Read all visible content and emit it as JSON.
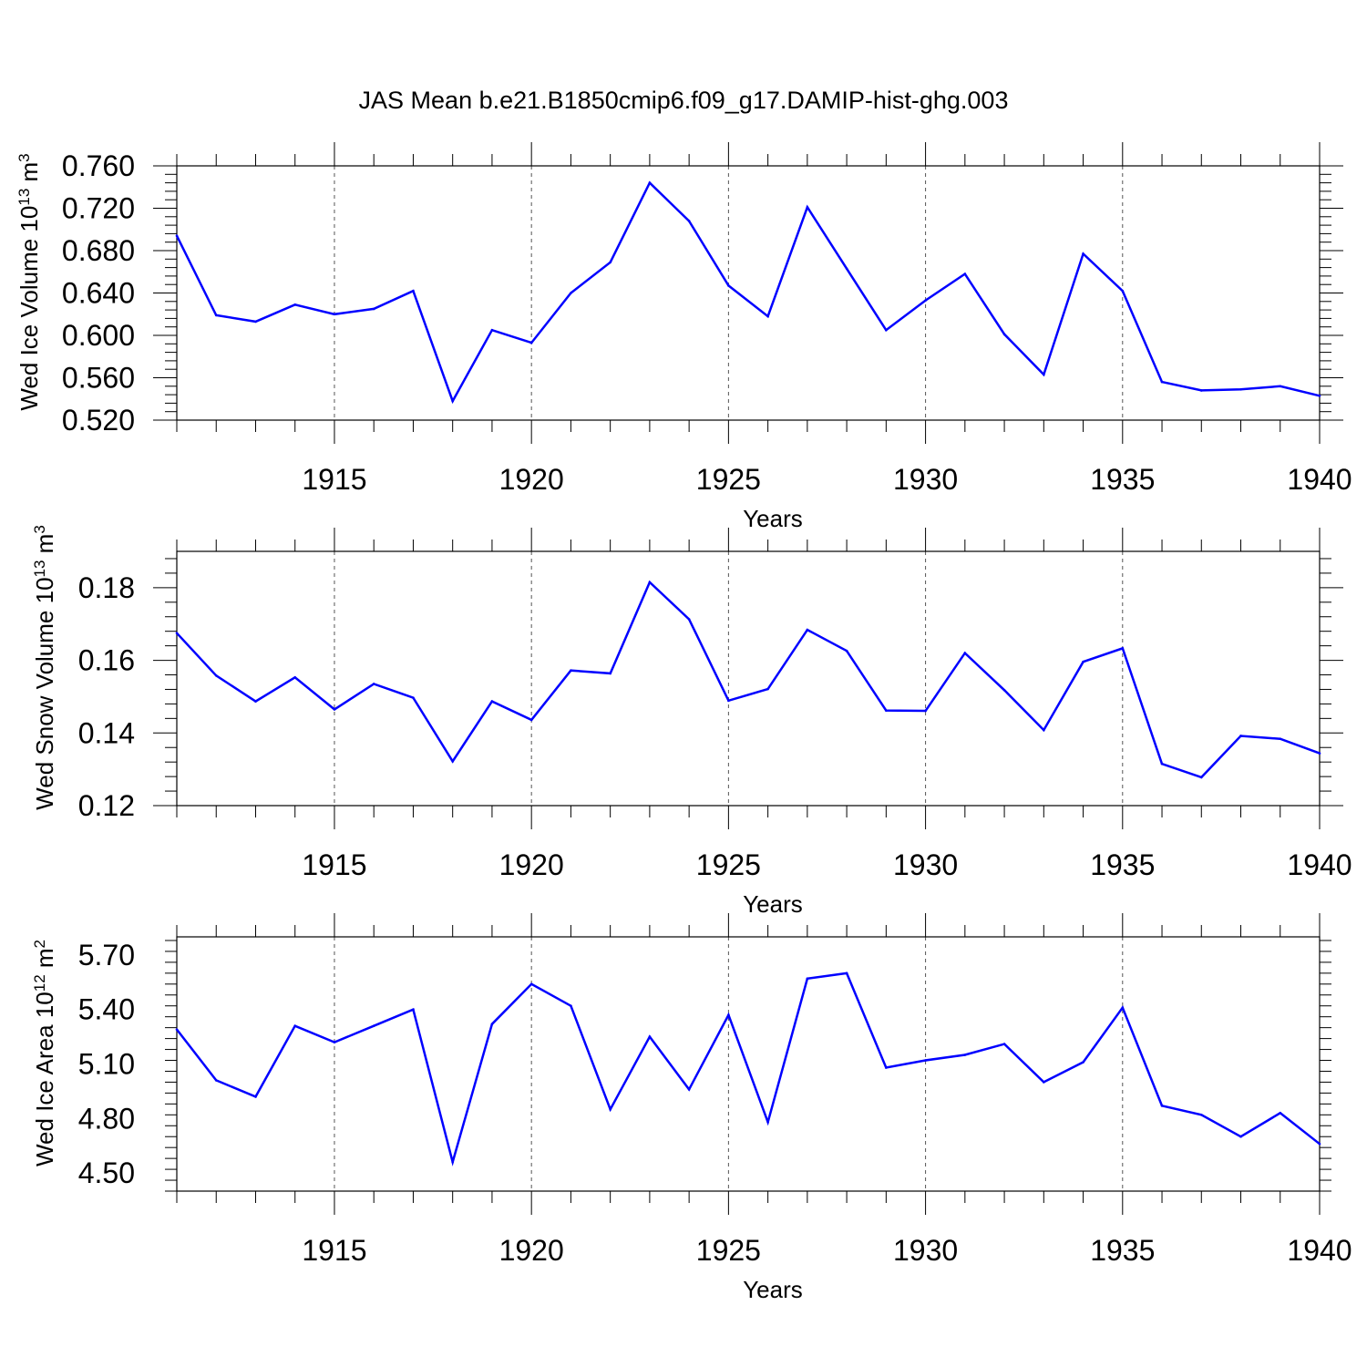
{
  "figure_title": "JAS Mean b.e21.B1850cmip6.f09_g17.DAMIP-hist-ghg.003",
  "line_color": "#0000ff",
  "chart_data": [
    {
      "type": "line",
      "title": "JAS Mean b.e21.B1850cmip6.f09_g17.DAMIP-hist-ghg.003",
      "xlabel": "Years",
      "ylabel_main": "Wed Ice Volume 10",
      "ylabel_exp": "13",
      "ylabel_unit": " m",
      "ylabel_unit_exp": "3",
      "x": [
        1911,
        1912,
        1913,
        1914,
        1915,
        1916,
        1917,
        1918,
        1919,
        1920,
        1921,
        1922,
        1923,
        1924,
        1925,
        1926,
        1927,
        1928,
        1929,
        1930,
        1931,
        1932,
        1933,
        1934,
        1935,
        1936,
        1937,
        1938,
        1939,
        1940
      ],
      "values": [
        0.694,
        0.619,
        0.613,
        0.629,
        0.62,
        0.625,
        0.642,
        0.538,
        0.605,
        0.593,
        0.64,
        0.669,
        0.744,
        0.708,
        0.647,
        0.618,
        0.721,
        0.663,
        0.605,
        0.633,
        0.658,
        0.601,
        0.563,
        0.677,
        0.642,
        0.556,
        0.548,
        0.549,
        0.552,
        0.543
      ],
      "xlim": [
        1911,
        1940
      ],
      "ylim": [
        0.52,
        0.76
      ],
      "xticks": [
        "1915",
        "1920",
        "1925",
        "1930",
        "1935",
        "1940"
      ],
      "yticks": [
        "0.520",
        "0.560",
        "0.600",
        "0.640",
        "0.680",
        "0.720",
        "0.760"
      ],
      "grid": "vertical dashed at major x ticks"
    },
    {
      "type": "line",
      "xlabel": "Years",
      "ylabel_main": "Wed Snow Volume 10",
      "ylabel_exp": "13",
      "ylabel_unit": " m",
      "ylabel_unit_exp": "3",
      "x": [
        1911,
        1912,
        1913,
        1914,
        1915,
        1916,
        1917,
        1918,
        1919,
        1920,
        1921,
        1922,
        1923,
        1924,
        1925,
        1926,
        1927,
        1928,
        1929,
        1930,
        1931,
        1932,
        1933,
        1934,
        1935,
        1936,
        1937,
        1938,
        1939,
        1940
      ],
      "values": [
        0.1675,
        0.1558,
        0.1487,
        0.1553,
        0.1465,
        0.1535,
        0.1497,
        0.1322,
        0.1487,
        0.1436,
        0.1572,
        0.1564,
        0.1815,
        0.1713,
        0.1489,
        0.1521,
        0.1684,
        0.1626,
        0.1462,
        0.1461,
        0.162,
        0.1518,
        0.1408,
        0.1596,
        0.1633,
        0.1315,
        0.1278,
        0.1392,
        0.1384,
        0.1344
      ],
      "xlim": [
        1911,
        1940
      ],
      "ylim": [
        0.12,
        0.19
      ],
      "xticks": [
        "1915",
        "1920",
        "1925",
        "1930",
        "1935",
        "1940"
      ],
      "yticks": [
        "0.12",
        "0.14",
        "0.16",
        "0.18"
      ],
      "grid": "vertical dashed at major x ticks"
    },
    {
      "type": "line",
      "xlabel": "Years",
      "ylabel_main": "Wed Ice Area 10",
      "ylabel_exp": "12",
      "ylabel_unit": " m",
      "ylabel_unit_exp": "2",
      "x": [
        1911,
        1912,
        1913,
        1914,
        1915,
        1916,
        1917,
        1918,
        1919,
        1920,
        1921,
        1922,
        1923,
        1924,
        1925,
        1926,
        1927,
        1928,
        1929,
        1930,
        1931,
        1932,
        1933,
        1934,
        1935,
        1936,
        1937,
        1938,
        1939,
        1940
      ],
      "values": [
        5.29,
        5.01,
        4.92,
        5.31,
        5.22,
        5.31,
        5.4,
        4.56,
        5.32,
        5.54,
        5.42,
        4.85,
        5.25,
        4.96,
        5.37,
        4.78,
        5.57,
        5.6,
        5.08,
        5.12,
        5.15,
        5.21,
        5.0,
        5.11,
        5.41,
        4.87,
        4.82,
        4.7,
        4.83,
        4.66
      ],
      "xlim": [
        1911,
        1940
      ],
      "ylim": [
        4.4,
        5.8
      ],
      "xticks": [
        "1915",
        "1920",
        "1925",
        "1930",
        "1935",
        "1940"
      ],
      "yticks": [
        "4.50",
        "4.80",
        "5.10",
        "5.40",
        "5.70"
      ],
      "grid": "vertical dashed at major x ticks"
    }
  ]
}
